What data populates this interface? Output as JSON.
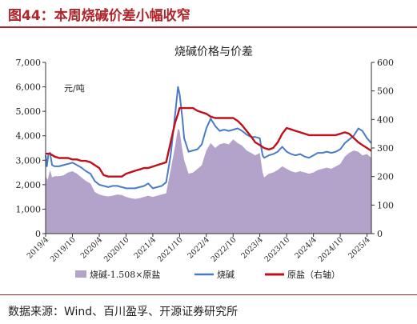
{
  "header": {
    "figure_title": "图44：本周烧碱价差小幅收窄"
  },
  "footer": {
    "source": "数据来源：Wind、百川盈孚、开源证券研究所"
  },
  "chart_data": {
    "type": "line",
    "title": "烧碱价格与价差",
    "left_unit": "元/吨",
    "y_left": {
      "min": 0,
      "max": 7000,
      "ticks": [
        "0",
        "1,000",
        "2,000",
        "3,000",
        "4,000",
        "5,000",
        "6,000",
        "7,000"
      ]
    },
    "y_right": {
      "min": 0,
      "max": 600,
      "ticks": [
        "0",
        "100",
        "200",
        "300",
        "400",
        "500",
        "600"
      ]
    },
    "x_ticks": [
      "2019/4",
      "2019/10",
      "2020/4",
      "2020/10",
      "2021/4",
      "2021/10",
      "2022/4",
      "2022/10",
      "2023/4",
      "2023/10",
      "2024/4",
      "2024/10",
      "2025/4"
    ],
    "x_range": [
      "2019/4",
      "2025/5"
    ],
    "grid": false,
    "legend_position": "bottom",
    "colors": {
      "spread": "#b3a2c9",
      "caustic_soda": "#4a7cc6",
      "salt": "#c0101c"
    },
    "series": [
      {
        "name": "烧碱-1.508×原盐",
        "type": "area",
        "axis": "left",
        "points": [
          [
            "2019/4/1",
            2350
          ],
          [
            "2019/4/15",
            2200
          ],
          [
            "2019/5/1",
            2600
          ],
          [
            "2019/5/15",
            2300
          ],
          [
            "2019/6/1",
            2350
          ],
          [
            "2019/7/1",
            2350
          ],
          [
            "2019/8/1",
            2380
          ],
          [
            "2019/9/1",
            2500
          ],
          [
            "2019/10/1",
            2550
          ],
          [
            "2019/11/1",
            2450
          ],
          [
            "2019/12/1",
            2300
          ],
          [
            "2020/1/1",
            2150
          ],
          [
            "2020/2/1",
            2050
          ],
          [
            "2020/3/1",
            1700
          ],
          [
            "2020/4/1",
            1600
          ],
          [
            "2020/5/1",
            1550
          ],
          [
            "2020/6/1",
            1520
          ],
          [
            "2020/7/1",
            1550
          ],
          [
            "2020/8/1",
            1600
          ],
          [
            "2020/9/1",
            1580
          ],
          [
            "2020/10/1",
            1500
          ],
          [
            "2020/11/1",
            1450
          ],
          [
            "2020/12/1",
            1420
          ],
          [
            "2021/1/1",
            1450
          ],
          [
            "2021/2/1",
            1500
          ],
          [
            "2021/3/1",
            1550
          ],
          [
            "2021/4/1",
            1500
          ],
          [
            "2021/5/1",
            1550
          ],
          [
            "2021/6/1",
            1600
          ],
          [
            "2021/7/1",
            1650
          ],
          [
            "2021/8/1",
            2600
          ],
          [
            "2021/9/1",
            3600
          ],
          [
            "2021/9/20",
            4300
          ],
          [
            "2021/10/1",
            4200
          ],
          [
            "2021/10/20",
            3400
          ],
          [
            "2021/11/1",
            3000
          ],
          [
            "2021/12/1",
            2450
          ],
          [
            "2022/1/1",
            2500
          ],
          [
            "2022/2/1",
            2650
          ],
          [
            "2022/3/1",
            2800
          ],
          [
            "2022/4/1",
            3400
          ],
          [
            "2022/5/1",
            3700
          ],
          [
            "2022/6/1",
            3500
          ],
          [
            "2022/7/1",
            3650
          ],
          [
            "2022/8/1",
            3700
          ],
          [
            "2022/9/1",
            3650
          ],
          [
            "2022/10/1",
            3850
          ],
          [
            "2022/11/1",
            3700
          ],
          [
            "2022/12/1",
            3600
          ],
          [
            "2023/1/1",
            3400
          ],
          [
            "2023/2/1",
            3300
          ],
          [
            "2023/3/1",
            3200
          ],
          [
            "2023/4/1",
            3300
          ],
          [
            "2023/4/20",
            2500
          ],
          [
            "2023/5/1",
            2300
          ],
          [
            "2023/6/1",
            2450
          ],
          [
            "2023/7/1",
            2500
          ],
          [
            "2023/8/1",
            2600
          ],
          [
            "2023/9/1",
            2750
          ],
          [
            "2023/10/1",
            2650
          ],
          [
            "2023/11/1",
            2550
          ],
          [
            "2023/12/1",
            2500
          ],
          [
            "2024/1/1",
            2550
          ],
          [
            "2024/2/1",
            2500
          ],
          [
            "2024/3/1",
            2450
          ],
          [
            "2024/4/1",
            2500
          ],
          [
            "2024/5/1",
            2600
          ],
          [
            "2024/6/1",
            2650
          ],
          [
            "2024/7/1",
            2700
          ],
          [
            "2024/8/1",
            2650
          ],
          [
            "2024/9/1",
            2750
          ],
          [
            "2024/10/1",
            2850
          ],
          [
            "2024/11/1",
            3150
          ],
          [
            "2024/12/1",
            3300
          ],
          [
            "2025/1/1",
            3400
          ],
          [
            "2025/2/1",
            3350
          ],
          [
            "2025/3/1",
            3200
          ],
          [
            "2025/4/1",
            3250
          ],
          [
            "2025/5/1",
            3100
          ]
        ]
      },
      {
        "name": "烧碱",
        "type": "line",
        "axis": "left",
        "points": [
          [
            "2019/4/1",
            3200
          ],
          [
            "2019/4/10",
            2750
          ],
          [
            "2019/4/20",
            3250
          ],
          [
            "2019/5/1",
            3300
          ],
          [
            "2019/5/15",
            2800
          ],
          [
            "2019/6/1",
            2750
          ],
          [
            "2019/7/1",
            2750
          ],
          [
            "2019/8/1",
            2800
          ],
          [
            "2019/9/1",
            2850
          ],
          [
            "2019/10/1",
            2900
          ],
          [
            "2019/11/1",
            2800
          ],
          [
            "2019/12/1",
            2700
          ],
          [
            "2020/1/1",
            2550
          ],
          [
            "2020/2/1",
            2450
          ],
          [
            "2020/3/1",
            2150
          ],
          [
            "2020/4/1",
            2000
          ],
          [
            "2020/5/1",
            1950
          ],
          [
            "2020/6/1",
            1900
          ],
          [
            "2020/7/1",
            1950
          ],
          [
            "2020/8/1",
            1950
          ],
          [
            "2020/9/1",
            1900
          ],
          [
            "2020/10/1",
            1850
          ],
          [
            "2020/11/1",
            1850
          ],
          [
            "2020/12/1",
            1850
          ],
          [
            "2021/1/1",
            1900
          ],
          [
            "2021/2/1",
            1950
          ],
          [
            "2021/3/1",
            2050
          ],
          [
            "2021/4/1",
            1850
          ],
          [
            "2021/5/1",
            1900
          ],
          [
            "2021/6/1",
            1950
          ],
          [
            "2021/7/1",
            2100
          ],
          [
            "2021/8/1",
            3200
          ],
          [
            "2021/9/1",
            4900
          ],
          [
            "2021/9/20",
            6000
          ],
          [
            "2021/10/1",
            5700
          ],
          [
            "2021/10/20",
            4700
          ],
          [
            "2021/11/1",
            3900
          ],
          [
            "2021/12/1",
            3350
          ],
          [
            "2022/1/1",
            3400
          ],
          [
            "2022/2/1",
            3450
          ],
          [
            "2022/3/1",
            3650
          ],
          [
            "2022/4/1",
            4300
          ],
          [
            "2022/5/1",
            4700
          ],
          [
            "2022/6/1",
            4400
          ],
          [
            "2022/7/1",
            4200
          ],
          [
            "2022/8/1",
            4250
          ],
          [
            "2022/9/1",
            4200
          ],
          [
            "2022/10/1",
            4250
          ],
          [
            "2022/11/1",
            4300
          ],
          [
            "2022/12/1",
            4200
          ],
          [
            "2023/1/1",
            4050
          ],
          [
            "2023/2/1",
            3950
          ],
          [
            "2023/3/1",
            3950
          ],
          [
            "2023/4/1",
            3900
          ],
          [
            "2023/4/20",
            3200
          ],
          [
            "2023/5/1",
            3100
          ],
          [
            "2023/6/1",
            3200
          ],
          [
            "2023/7/1",
            3250
          ],
          [
            "2023/8/1",
            3350
          ],
          [
            "2023/9/1",
            3550
          ],
          [
            "2023/10/1",
            3350
          ],
          [
            "2023/11/1",
            3250
          ],
          [
            "2023/12/1",
            3200
          ],
          [
            "2024/1/1",
            3250
          ],
          [
            "2024/2/1",
            3150
          ],
          [
            "2024/3/1",
            3100
          ],
          [
            "2024/4/1",
            3200
          ],
          [
            "2024/5/1",
            3300
          ],
          [
            "2024/6/1",
            3300
          ],
          [
            "2024/7/1",
            3350
          ],
          [
            "2024/8/1",
            3300
          ],
          [
            "2024/9/1",
            3350
          ],
          [
            "2024/10/1",
            3450
          ],
          [
            "2024/11/1",
            3700
          ],
          [
            "2024/12/1",
            3850
          ],
          [
            "2025/1/1",
            4000
          ],
          [
            "2025/2/1",
            4300
          ],
          [
            "2025/3/1",
            4200
          ],
          [
            "2025/4/1",
            3900
          ],
          [
            "2025/5/1",
            3700
          ]
        ]
      },
      {
        "name": "原盐（右轴）",
        "type": "line",
        "axis": "right",
        "points": [
          [
            "2019/4/1",
            280
          ],
          [
            "2019/5/1",
            280
          ],
          [
            "2019/6/1",
            270
          ],
          [
            "2019/7/1",
            265
          ],
          [
            "2019/8/1",
            265
          ],
          [
            "2019/9/1",
            265
          ],
          [
            "2019/10/1",
            260
          ],
          [
            "2019/11/1",
            260
          ],
          [
            "2019/12/1",
            255
          ],
          [
            "2020/1/1",
            255
          ],
          [
            "2020/2/1",
            250
          ],
          [
            "2020/3/1",
            240
          ],
          [
            "2020/4/1",
            230
          ],
          [
            "2020/5/1",
            205
          ],
          [
            "2020/6/1",
            200
          ],
          [
            "2020/7/1",
            200
          ],
          [
            "2020/8/1",
            200
          ],
          [
            "2020/9/1",
            200
          ],
          [
            "2020/10/1",
            210
          ],
          [
            "2020/11/1",
            215
          ],
          [
            "2020/12/1",
            220
          ],
          [
            "2021/1/1",
            225
          ],
          [
            "2021/2/1",
            230
          ],
          [
            "2021/3/1",
            230
          ],
          [
            "2021/4/1",
            235
          ],
          [
            "2021/5/1",
            240
          ],
          [
            "2021/6/1",
            245
          ],
          [
            "2021/7/1",
            250
          ],
          [
            "2021/8/1",
            320
          ],
          [
            "2021/9/1",
            390
          ],
          [
            "2021/9/20",
            420
          ],
          [
            "2021/10/1",
            440
          ],
          [
            "2021/11/1",
            440
          ],
          [
            "2021/12/1",
            440
          ],
          [
            "2022/1/1",
            440
          ],
          [
            "2022/2/1",
            430
          ],
          [
            "2022/3/1",
            425
          ],
          [
            "2022/4/1",
            420
          ],
          [
            "2022/5/1",
            410
          ],
          [
            "2022/6/1",
            405
          ],
          [
            "2022/7/1",
            405
          ],
          [
            "2022/8/1",
            405
          ],
          [
            "2022/9/1",
            405
          ],
          [
            "2022/10/1",
            405
          ],
          [
            "2022/11/1",
            395
          ],
          [
            "2022/12/1",
            380
          ],
          [
            "2023/1/1",
            360
          ],
          [
            "2023/2/1",
            340
          ],
          [
            "2023/3/1",
            320
          ],
          [
            "2023/4/1",
            310
          ],
          [
            "2023/5/1",
            300
          ],
          [
            "2023/6/1",
            295
          ],
          [
            "2023/7/1",
            300
          ],
          [
            "2023/8/1",
            320
          ],
          [
            "2023/9/1",
            350
          ],
          [
            "2023/10/1",
            370
          ],
          [
            "2023/11/1",
            365
          ],
          [
            "2023/12/1",
            360
          ],
          [
            "2024/1/1",
            355
          ],
          [
            "2024/2/1",
            350
          ],
          [
            "2024/3/1",
            345
          ],
          [
            "2024/4/1",
            345
          ],
          [
            "2024/5/1",
            345
          ],
          [
            "2024/6/1",
            345
          ],
          [
            "2024/7/1",
            345
          ],
          [
            "2024/8/1",
            345
          ],
          [
            "2024/9/1",
            345
          ],
          [
            "2024/10/1",
            350
          ],
          [
            "2024/11/1",
            355
          ],
          [
            "2024/12/1",
            350
          ],
          [
            "2025/1/1",
            335
          ],
          [
            "2025/2/1",
            320
          ],
          [
            "2025/3/1",
            310
          ],
          [
            "2025/4/1",
            300
          ],
          [
            "2025/5/1",
            290
          ]
        ]
      }
    ]
  }
}
